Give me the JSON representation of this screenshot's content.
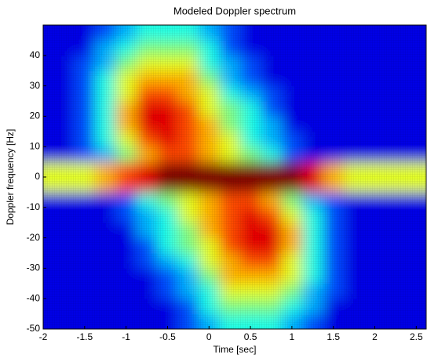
{
  "chart_data": {
    "type": "heatmap",
    "title": "Modeled Doppler spectrum",
    "x_label": "Time [sec]",
    "y_label": "Doppler frequency [Hz]",
    "x": [
      -2,
      -1.75,
      -1.5,
      -1.25,
      -1,
      -0.75,
      -0.5,
      -0.25,
      0,
      0.25,
      0.5,
      0.75,
      1,
      1.25,
      1.5,
      1.75,
      2,
      2.25,
      2.5
    ],
    "y": [
      -47.5,
      -42.5,
      -37.5,
      -32.5,
      -27.5,
      -22.5,
      -17.5,
      -12.5,
      -7.5,
      -2.5,
      2.5,
      7.5,
      12.5,
      17.5,
      22.5,
      27.5,
      32.5,
      37.5,
      42.5,
      47.5
    ],
    "z": [
      [
        0,
        0,
        0,
        0,
        0,
        0,
        0,
        1,
        2,
        3,
        3,
        3,
        2,
        1,
        0,
        0,
        0,
        0,
        0
      ],
      [
        0,
        0,
        0,
        0,
        0,
        0,
        0,
        1,
        3,
        4,
        4,
        4,
        3,
        2,
        0,
        0,
        0,
        0,
        0
      ],
      [
        0,
        0,
        0,
        0,
        0,
        0,
        1,
        2,
        3,
        5,
        5,
        5,
        4,
        2,
        1,
        0,
        0,
        0,
        0
      ],
      [
        0,
        0,
        0,
        0,
        0,
        0,
        1,
        2,
        4,
        6,
        6,
        6,
        5,
        3,
        1,
        0,
        0,
        0,
        0
      ],
      [
        0,
        0,
        0,
        0,
        0,
        1,
        2,
        3,
        5,
        6,
        7,
        7,
        5,
        3,
        1,
        0,
        0,
        0,
        0
      ],
      [
        0,
        0,
        0,
        0,
        0,
        1,
        3,
        4,
        5,
        7,
        8,
        8,
        6,
        3,
        1,
        0,
        0,
        0,
        0
      ],
      [
        0,
        0,
        0,
        0,
        0,
        2,
        3,
        4,
        6,
        7,
        8,
        8,
        6,
        3,
        1,
        0,
        0,
        0,
        0
      ],
      [
        0,
        0,
        0,
        0,
        1,
        2,
        3,
        5,
        6,
        7,
        8,
        7,
        5,
        3,
        1,
        0,
        0,
        0,
        0
      ],
      [
        0,
        0,
        0,
        0,
        1,
        3,
        4,
        5,
        6,
        7,
        7,
        6,
        4,
        2,
        1,
        0,
        0,
        0,
        0
      ],
      [
        5,
        5,
        5,
        6,
        7,
        8,
        9,
        9,
        9,
        9,
        9,
        9,
        9,
        8,
        6,
        5,
        5,
        5,
        5
      ],
      [
        5,
        5,
        5,
        6,
        7,
        8,
        9,
        9,
        9,
        9,
        9,
        9,
        9,
        8,
        6,
        5,
        5,
        5,
        5
      ],
      [
        0,
        0,
        1,
        2,
        4,
        6,
        7,
        7,
        6,
        5,
        4,
        3,
        1,
        0,
        0,
        0,
        0,
        0,
        0
      ],
      [
        0,
        0,
        1,
        3,
        5,
        7,
        8,
        7,
        6,
        5,
        3,
        2,
        1,
        0,
        0,
        0,
        0,
        0,
        0
      ],
      [
        0,
        0,
        1,
        3,
        6,
        8,
        8,
        7,
        6,
        4,
        3,
        2,
        0,
        0,
        0,
        0,
        0,
        0,
        0
      ],
      [
        0,
        0,
        1,
        3,
        6,
        8,
        8,
        7,
        5,
        4,
        3,
        1,
        0,
        0,
        0,
        0,
        0,
        0,
        0
      ],
      [
        0,
        0,
        1,
        3,
        5,
        7,
        7,
        6,
        5,
        3,
        2,
        1,
        0,
        0,
        0,
        0,
        0,
        0,
        0
      ],
      [
        0,
        0,
        1,
        3,
        5,
        6,
        6,
        6,
        4,
        2,
        1,
        0,
        0,
        0,
        0,
        0,
        0,
        0,
        0
      ],
      [
        0,
        0,
        1,
        2,
        4,
        5,
        5,
        5,
        3,
        2,
        1,
        0,
        0,
        0,
        0,
        0,
        0,
        0,
        0
      ],
      [
        0,
        0,
        0,
        2,
        3,
        4,
        4,
        4,
        3,
        1,
        0,
        0,
        0,
        0,
        0,
        0,
        0,
        0,
        0
      ],
      [
        0,
        0,
        0,
        1,
        2,
        3,
        3,
        3,
        2,
        1,
        0,
        0,
        0,
        0,
        0,
        0,
        0,
        0,
        0
      ]
    ],
    "zlim": [
      0,
      9
    ],
    "colormap": "jet",
    "xlim": [
      -2,
      2.62
    ],
    "ylim": [
      -50,
      50
    ],
    "xticks": [
      -2,
      -1.5,
      -1,
      -0.5,
      0,
      0.5,
      1,
      1.5,
      2,
      2.5
    ],
    "yticks": [
      -50,
      -40,
      -30,
      -20,
      -10,
      0,
      10,
      20,
      30,
      40
    ]
  }
}
